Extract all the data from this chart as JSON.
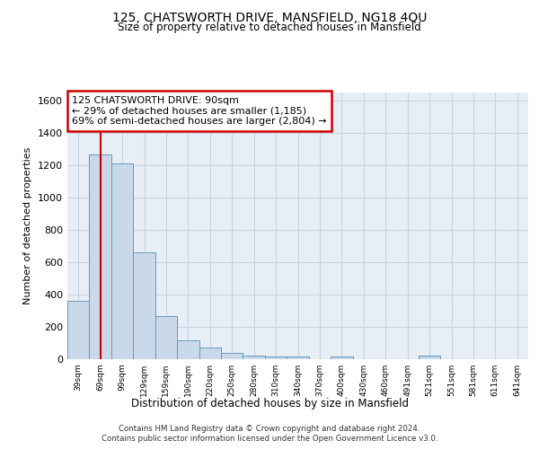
{
  "title": "125, CHATSWORTH DRIVE, MANSFIELD, NG18 4QU",
  "subtitle": "Size of property relative to detached houses in Mansfield",
  "xlabel": "Distribution of detached houses by size in Mansfield",
  "ylabel": "Number of detached properties",
  "footer_line1": "Contains HM Land Registry data © Crown copyright and database right 2024.",
  "footer_line2": "Contains public sector information licensed under the Open Government Licence v3.0.",
  "categories": [
    "39sqm",
    "69sqm",
    "99sqm",
    "129sqm",
    "159sqm",
    "190sqm",
    "220sqm",
    "250sqm",
    "280sqm",
    "310sqm",
    "340sqm",
    "370sqm",
    "400sqm",
    "430sqm",
    "460sqm",
    "491sqm",
    "521sqm",
    "551sqm",
    "581sqm",
    "611sqm",
    "641sqm"
  ],
  "bar_values": [
    360,
    1265,
    1210,
    660,
    265,
    115,
    70,
    40,
    22,
    18,
    18,
    0,
    18,
    0,
    0,
    0,
    22,
    0,
    0,
    0,
    0
  ],
  "bar_color": "#c9d9ea",
  "bar_edge_color": "#6699bb",
  "annotation_text": "125 CHATSWORTH DRIVE: 90sqm\n← 29% of detached houses are smaller (1,185)\n69% of semi-detached houses are larger (2,804) →",
  "annotation_box_color": "#ffffff",
  "annotation_box_edge_color": "#cc0000",
  "ylim": [
    0,
    1650
  ],
  "yticks": [
    0,
    200,
    400,
    600,
    800,
    1000,
    1200,
    1400,
    1600
  ],
  "grid_color": "#c8d4e0",
  "plot_bg_color": "#e8eef5",
  "vline_color": "#cc0000",
  "vline_x": 1.0
}
